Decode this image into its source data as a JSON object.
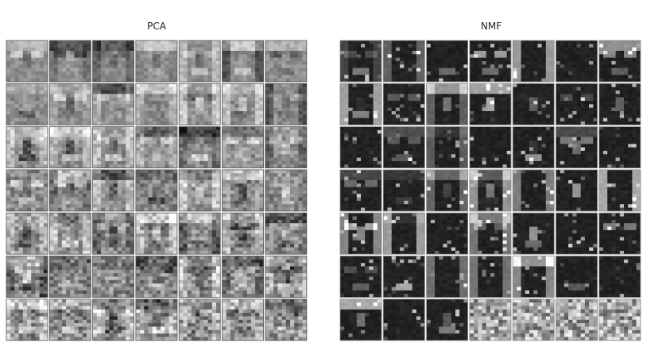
{
  "panels": [
    {
      "title": "PCA"
    },
    {
      "title": "NMF"
    }
  ]
}
